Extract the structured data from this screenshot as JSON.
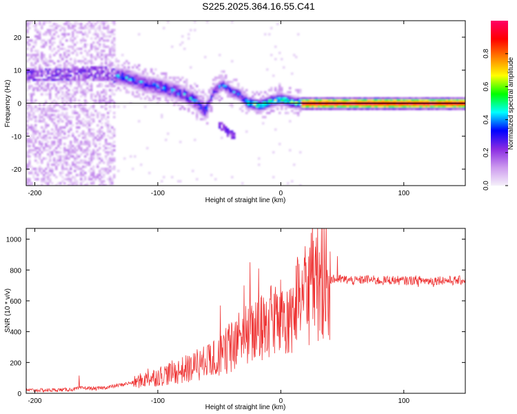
{
  "title": "S225.2025.364.16.55.C41",
  "chart_data": [
    {
      "id": "spectrogram",
      "type": "heatmap",
      "xlabel": "Height of straight line (km)",
      "ylabel": "Frequency (Hz)",
      "xlim": [
        -207,
        150
      ],
      "ylim": [
        -25,
        25
      ],
      "xticks": [
        -200,
        -100,
        0,
        100
      ],
      "yticks": [
        -20,
        -10,
        0,
        10,
        20
      ],
      "ridge": [
        {
          "x": -175,
          "y": 9
        },
        {
          "x": -155,
          "y": 9.5
        },
        {
          "x": -140,
          "y": 9
        },
        {
          "x": -125,
          "y": 8
        },
        {
          "x": -110,
          "y": 6
        },
        {
          "x": -95,
          "y": 5
        },
        {
          "x": -80,
          "y": 3
        },
        {
          "x": -70,
          "y": 1
        },
        {
          "x": -62,
          "y": -2
        },
        {
          "x": -55,
          "y": 4
        },
        {
          "x": -48,
          "y": 6
        },
        {
          "x": -42,
          "y": 4
        },
        {
          "x": -35,
          "y": 3
        },
        {
          "x": -28,
          "y": 0.5
        },
        {
          "x": -18,
          "y": -0.5
        },
        {
          "x": -8,
          "y": 1
        },
        {
          "x": 0,
          "y": 1.5
        },
        {
          "x": 10,
          "y": 0.5
        },
        {
          "x": 20,
          "y": 0.2
        },
        {
          "x": 150,
          "y": 0
        }
      ],
      "colorbar": {
        "label": "Normalized spectral amplitude",
        "range": [
          0,
          1
        ],
        "ticks": [
          0.0,
          0.2,
          0.4,
          0.6,
          0.8
        ],
        "tick_labels": [
          "0.0",
          "0.2",
          "0.4",
          "0.6",
          "0.8"
        ],
        "colormap": [
          "#f5f0fa",
          "#cc99ee",
          "#8a2be2",
          "#0000ff",
          "#00ffff",
          "#00ff00",
          "#ffff00",
          "#ff8000",
          "#ff0000",
          "#ff0066"
        ]
      }
    },
    {
      "id": "snr",
      "type": "line",
      "xlabel": "Height of straight line (km)",
      "ylabel": "SNR (10 * v/v)",
      "xlim": [
        -207,
        150
      ],
      "ylim": [
        0,
        1070
      ],
      "xticks": [
        -200,
        -100,
        0,
        100
      ],
      "yticks": [
        0,
        200,
        400,
        600,
        800,
        1000
      ],
      "series": [
        {
          "name": "SNR",
          "color": "#ee3333",
          "x": [
            -207,
            -190,
            -170,
            -160,
            -150,
            -140,
            -130,
            -120,
            -110,
            -100,
            -90,
            -80,
            -70,
            -60,
            -50,
            -40,
            -30,
            -20,
            -10,
            0,
            10,
            20,
            30,
            40,
            50,
            60,
            70,
            80,
            90,
            100,
            110,
            120,
            130,
            140,
            150
          ],
          "y": [
            20,
            20,
            25,
            35,
            30,
            40,
            55,
            70,
            90,
            110,
            130,
            150,
            170,
            200,
            240,
            290,
            340,
            400,
            450,
            480,
            540,
            610,
            680,
            740,
            740,
            730,
            740,
            730,
            735,
            730,
            735,
            730,
            735,
            730,
            735
          ],
          "spikes": [
            {
              "x": -164,
              "y": 115
            },
            {
              "x": -108,
              "y": 160
            },
            {
              "x": -94,
              "y": 150
            },
            {
              "x": -68,
              "y": 285
            },
            {
              "x": -49,
              "y": 570
            },
            {
              "x": -40,
              "y": 460
            },
            {
              "x": -30,
              "y": 700
            },
            {
              "x": -25,
              "y": 850
            },
            {
              "x": -18,
              "y": 810
            },
            {
              "x": -13,
              "y": 580
            },
            {
              "x": -8,
              "y": 700
            },
            {
              "x": 5,
              "y": 660
            },
            {
              "x": 15,
              "y": 840
            },
            {
              "x": 20,
              "y": 720
            },
            {
              "x": 28,
              "y": 880
            },
            {
              "x": 34,
              "y": 1070
            },
            {
              "x": 40,
              "y": 920
            },
            {
              "x": 46,
              "y": 890
            },
            {
              "x": 112,
              "y": 690
            },
            {
              "x": 124,
              "y": 690
            }
          ]
        }
      ]
    }
  ]
}
